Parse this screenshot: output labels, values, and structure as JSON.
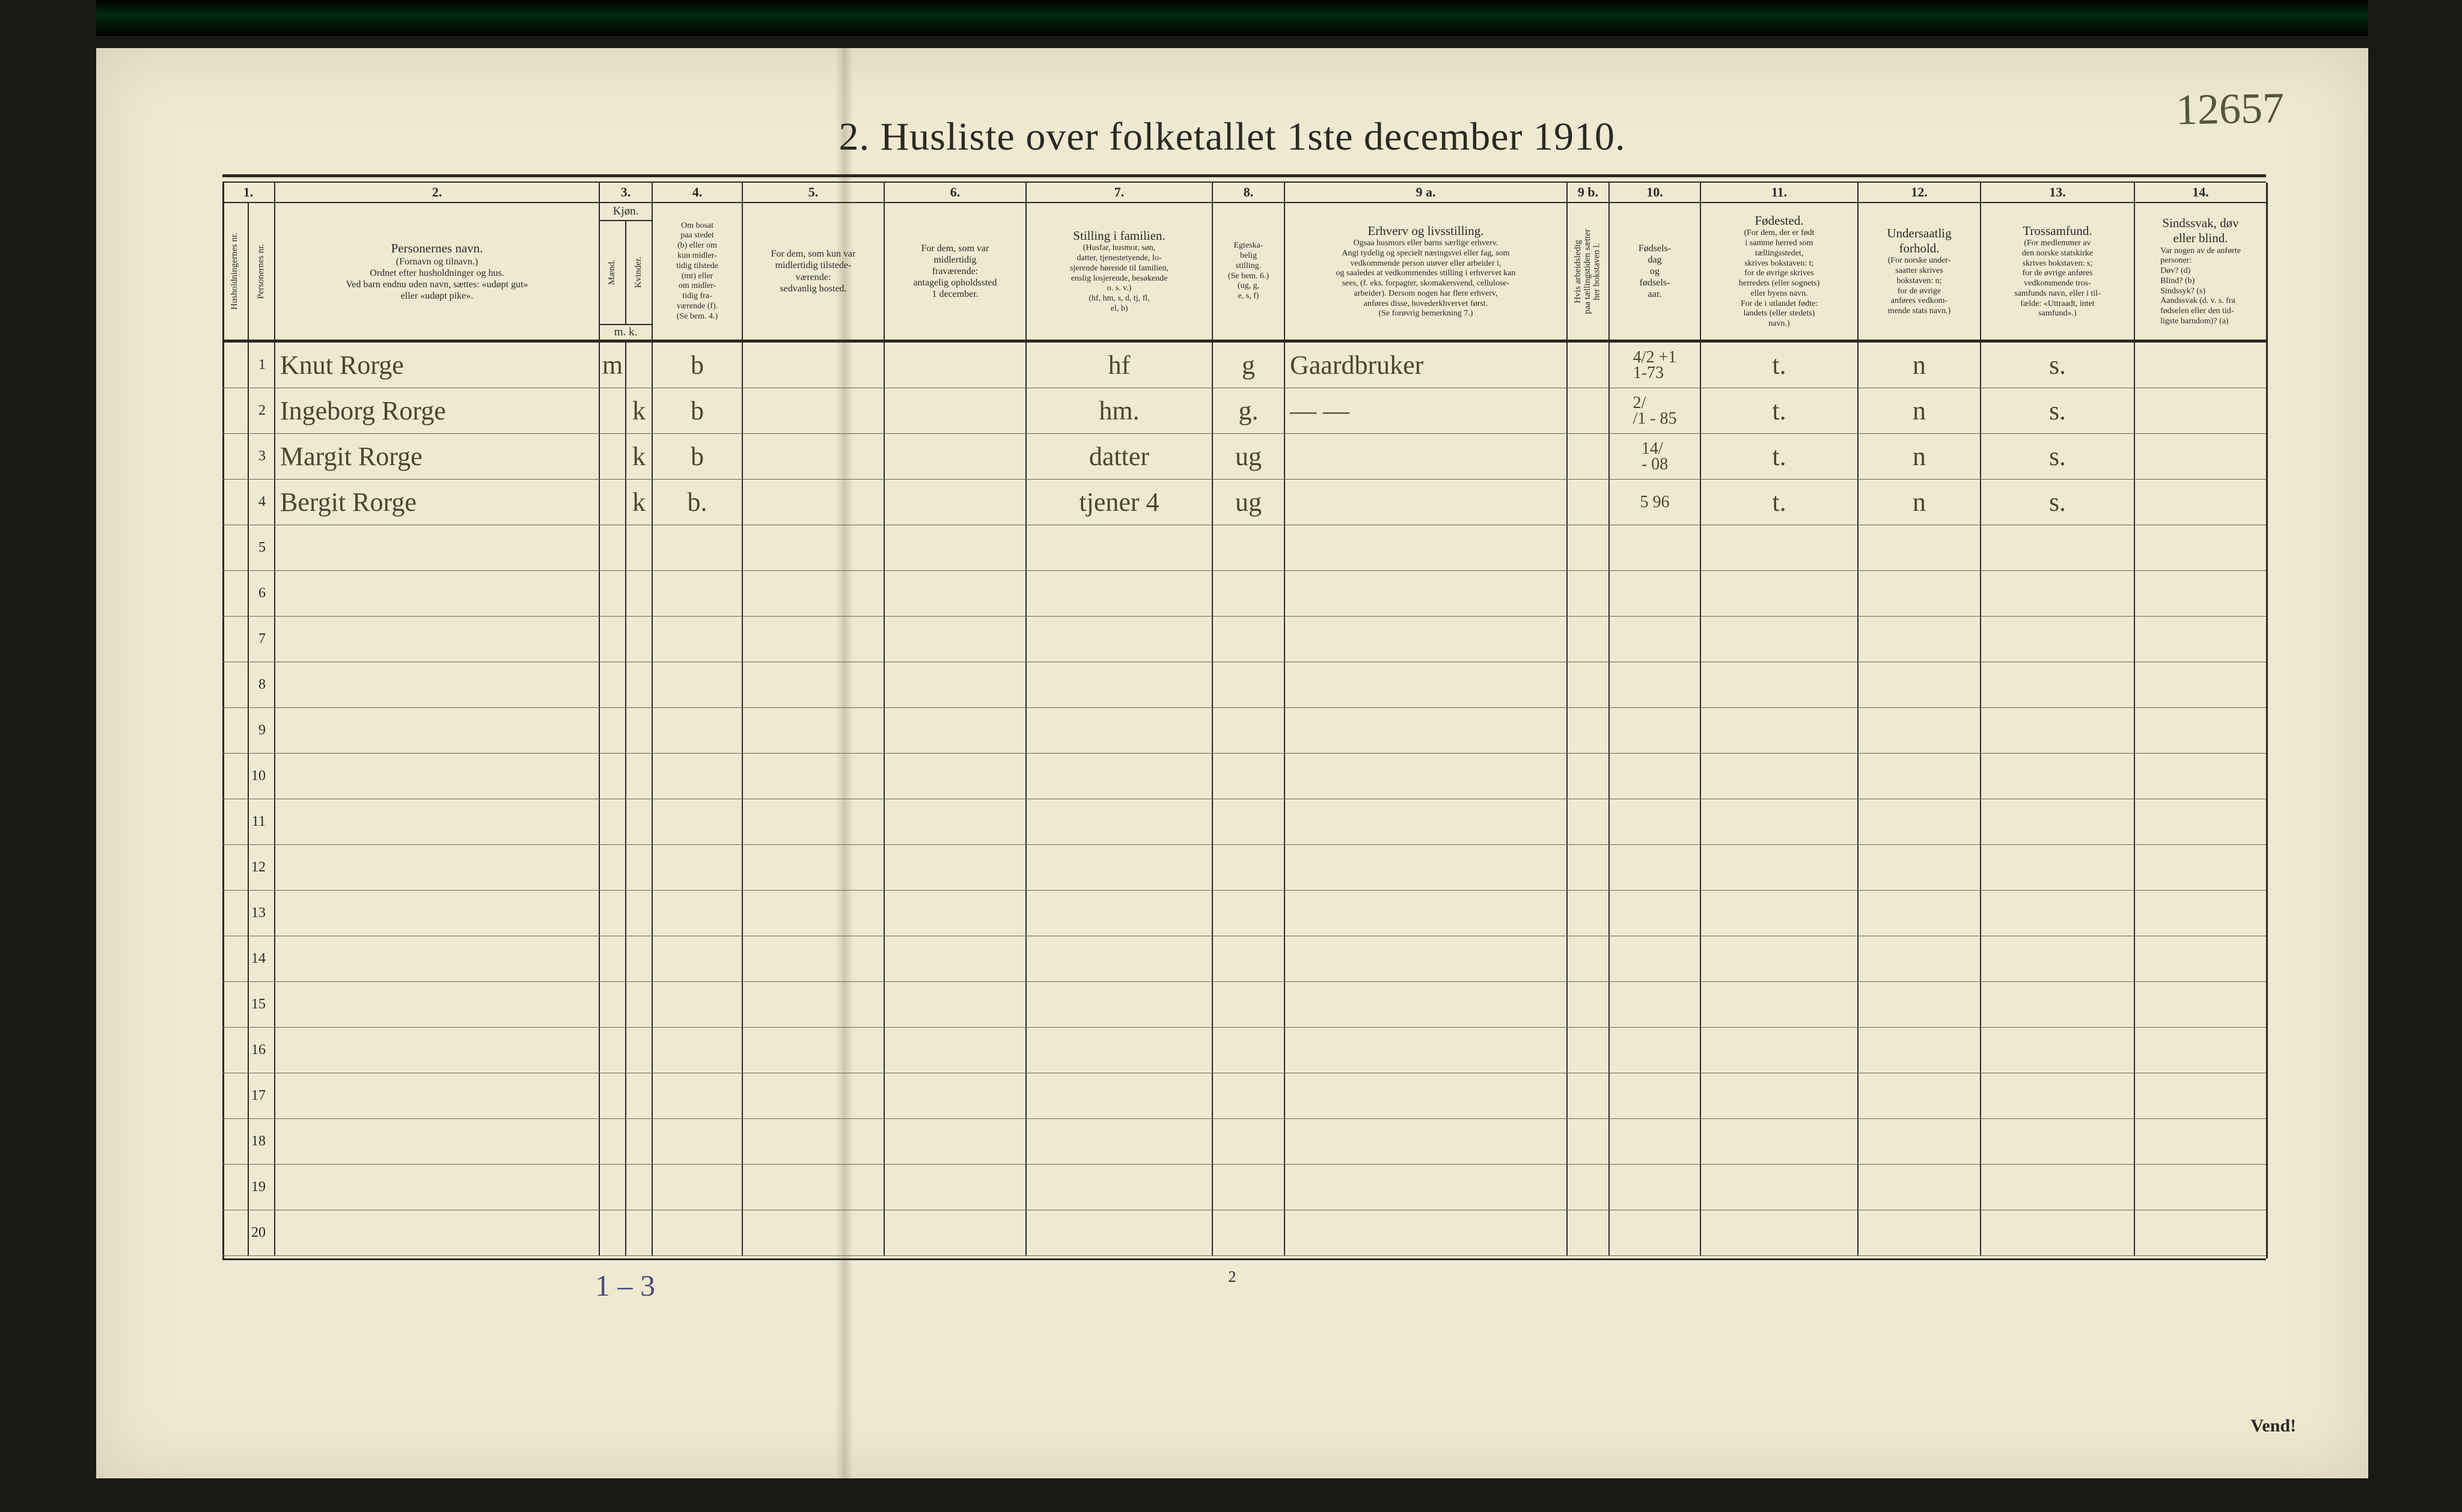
{
  "title": "2.   Husliste over folketallet 1ste december 1910.",
  "annotation_topright": "12657",
  "footer_page_num": "2",
  "footer_vend": "Vend!",
  "footer_note": "1 – 3",
  "col_widths": {
    "c1": 44,
    "c1b": 44,
    "c2": 540,
    "c3m": 44,
    "c3k": 44,
    "c4": 150,
    "c5": 236,
    "c6": 236,
    "c7": 310,
    "c8": 120,
    "c9a": 470,
    "c9b": 70,
    "c10": 152,
    "c11": 262,
    "c12": 204,
    "c13": 256,
    "c14": 218
  },
  "colnums": [
    "1.",
    "2.",
    "3.",
    "4.",
    "5.",
    "6.",
    "7.",
    "8.",
    "9 a.",
    "9 b.",
    "10.",
    "11.",
    "12.",
    "13.",
    "14."
  ],
  "headers": {
    "c1a": "Husholdningernes nr.",
    "c1b": "Personernes nr.",
    "c2_title": "Personernes navn.",
    "c2_sub": "(Fornavn og tilnavn.)\nOrdnet efter husholdninger og hus.\nVed barn endnu uden navn, sættes: «udøpt gut»\neller «udøpt pike».",
    "c3_title": "Kjøn.",
    "c3_m": "Mænd.",
    "c3_k": "Kvinder.",
    "c3_foot": "m.   k.",
    "c4": "Om bosat\npaa stedet\n(b) eller om\nkun midler-\ntidig tilstede\n(mt) eller\nom midler-\ntidig fra-\nværende (f).\n(Se bem. 4.)",
    "c5": "For dem, som kun var\nmidlertidig tilstede-\nværende:\nsedvanlig bosted.",
    "c6": "For dem, som var\nmidlertidig\nfraværende:\nantagelig opholdssted\n1 december.",
    "c7_title": "Stilling i familien.",
    "c7_sub": "(Husfar, husmor, søn,\ndatter, tjenestetyende, lo-\nsjerende hørende til familien,\nenslig losjerende, besøkende\no. s. v.)\n(hf, hm, s, d, tj, fl,\nel, b)",
    "c8": "Egteska-\nbelig\nstilling.\n(Se bem. 6.)\n(ug, g,\ne, s, f)",
    "c9a_title": "Erhverv og livsstilling.",
    "c9a_sub": "Ogsaa husmors eller barns særlige erhverv.\nAngi tydelig og specielt næringsvei eller fag, som\nvedkommende person utøver eller arbeider i,\nog saaledes at vedkommendes stilling i erhvervet kan\nsees, (f. eks. forpagter, skomakersvend, cellulose-\narbeider). Dersom nogen har flere erhverv,\nanføres disse, hovederkhvervet først.\n(Se forøvrig bemerkning 7.)",
    "c9b": "Hvis arbeidsledig\npaa tællingstiden sætter\nher bokstaven l.",
    "c10": "Fødsels-\ndag\nog\nfødsels-\naar.",
    "c11_title": "Fødested.",
    "c11_sub": "(For dem, der er født\ni samme herred som\ntællingsstedet,\nskrives bokstaven: t;\nfor de øvrige skrives\nherredets (eller sognets)\neller byens navn.\nFor de i utlandet fødte:\nlandets (eller stedets)\nnavn.)",
    "c12_title": "Undersaatlig\nforhold.",
    "c12_sub": "(For norske under-\nsaatter skrives\nbokstaven: n;\nfor de øvrige\nanføres vedkom-\nmende stats navn.)",
    "c13_title": "Trossamfund.",
    "c13_sub": "(For medlemmer av\nden norske statskirke\nskrives bokstaven: s;\nfor de øvrige anføres\nvedkommende tros-\nsamfunds navn, eller i til-\nfælde: «Uttraadt, intet\nsamfund».)",
    "c14_title": "Sindssvak, døv\neller blind.",
    "c14_sub": "Var nogen av de anførte\npersoner:\nDøv?        (d)\nBlind?      (b)\nSindssyk? (s)\nAandssvak (d. v. s. fra\nfødselen eller den tid-\nligste barndom)?  (a)"
  },
  "rows": [
    {
      "n": "1",
      "name": "Knut  Rorge",
      "m": "m",
      "k": "",
      "bosat": "b",
      "c5": "",
      "c6": "",
      "fam": "hf",
      "eg": "g",
      "erhv": "Gaardbruker",
      "l": "",
      "fdate": "4/2 +1\n1-73",
      "fsted": "t.",
      "und": "n",
      "tro": "s.",
      "c14": ""
    },
    {
      "n": "2",
      "name": "Ingeborg  Rorge",
      "m": "",
      "k": "k",
      "bosat": "b",
      "c5": "",
      "c6": "",
      "fam": "hm.",
      "eg": "g.",
      "erhv": "—        —",
      "l": "",
      "fdate": "2/\n/1 - 85",
      "fsted": "t.",
      "und": "n",
      "tro": "s.",
      "c14": ""
    },
    {
      "n": "3",
      "name": "Margit   Rorge",
      "m": "",
      "k": "k",
      "bosat": "b",
      "c5": "",
      "c6": "",
      "fam": "datter",
      "eg": "ug",
      "erhv": "",
      "l": "",
      "fdate": "14/\n - 08",
      "fsted": "t.",
      "und": "n",
      "tro": "s.",
      "c14": ""
    },
    {
      "n": "4",
      "name": "Bergit    Rorge",
      "m": "",
      "k": "k",
      "bosat": "b.",
      "c5": "",
      "c6": "",
      "fam": "tjener  4",
      "eg": "ug",
      "erhv": "",
      "l": "",
      "fdate": "5 96",
      "fsted": "t.",
      "und": "n",
      "tro": "s.",
      "c14": ""
    }
  ],
  "empty_rows": [
    "5",
    "6",
    "7",
    "8",
    "9",
    "10",
    "11",
    "12",
    "13",
    "14",
    "15",
    "16",
    "17",
    "18",
    "19",
    "20"
  ],
  "colors": {
    "paper": "#efe9d2",
    "ink": "#2a2a22",
    "script": "#4a4632",
    "purple": "#4a4a7a"
  },
  "fonts": {
    "title_pt": 66,
    "header_pt": 19,
    "body_pt": 26,
    "script_pt": 44
  }
}
